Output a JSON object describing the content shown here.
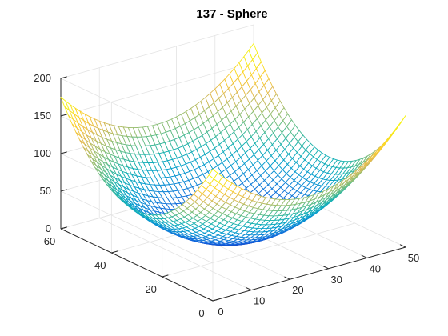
{
  "chart_data": {
    "type": "surface",
    "title": "137 - Sphere",
    "function": "sphere",
    "xlabel": "",
    "ylabel": "",
    "zlabel": "",
    "xlim": [
      0,
      50
    ],
    "ylim": [
      0,
      60
    ],
    "zlim": [
      0,
      200
    ],
    "x_ticks": [
      0,
      10,
      20,
      30,
      40,
      50
    ],
    "y_ticks": [
      0,
      20,
      40,
      60
    ],
    "z_ticks": [
      0,
      50,
      100,
      150,
      200
    ],
    "z_max": 175,
    "grid": true,
    "box": false,
    "colormap": "parula",
    "view": "3d-isometric"
  }
}
